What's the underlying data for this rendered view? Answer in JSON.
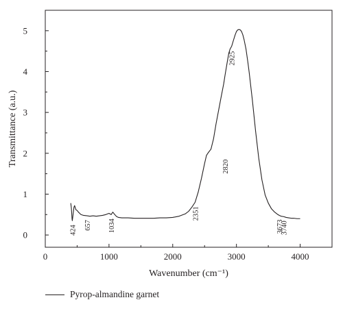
{
  "chart_data": {
    "type": "line",
    "xlabel": "Wavenumber (cm⁻¹)",
    "ylabel": "Transmittance (a.u.)",
    "xlim": [
      0,
      4500
    ],
    "ylim": [
      -0.3,
      5.5
    ],
    "xticks": [
      0,
      1000,
      2000,
      3000,
      4000
    ],
    "yticks": [
      0,
      1,
      2,
      3,
      4,
      5
    ],
    "grid": false,
    "legend_position": "bottom-left",
    "series": [
      {
        "name": "Pyrop-almandine garnet",
        "color": "#231f20",
        "x": [
          400,
          410,
          420,
          424,
          430,
          440,
          450,
          460,
          470,
          480,
          500,
          520,
          540,
          560,
          600,
          657,
          700,
          750,
          800,
          850,
          900,
          950,
          1000,
          1034,
          1060,
          1090,
          1120,
          1150,
          1200,
          1300,
          1400,
          1500,
          1600,
          1700,
          1800,
          1900,
          2000,
          2100,
          2200,
          2250,
          2300,
          2351,
          2400,
          2450,
          2500,
          2530,
          2560,
          2600,
          2640,
          2680,
          2720,
          2760,
          2800,
          2820,
          2850,
          2880,
          2900,
          2925,
          2950,
          2980,
          3000,
          3020,
          3040,
          3060,
          3080,
          3100,
          3120,
          3150,
          3180,
          3200,
          3250,
          3300,
          3350,
          3400,
          3450,
          3500,
          3550,
          3600,
          3650,
          3673,
          3700,
          3740,
          3780,
          3820,
          3860,
          3900,
          3950,
          4000
        ],
        "y": [
          0.78,
          0.65,
          0.4,
          0.35,
          0.42,
          0.55,
          0.68,
          0.72,
          0.67,
          0.62,
          0.6,
          0.56,
          0.53,
          0.5,
          0.48,
          0.47,
          0.46,
          0.47,
          0.46,
          0.47,
          0.48,
          0.5,
          0.53,
          0.5,
          0.56,
          0.5,
          0.45,
          0.43,
          0.42,
          0.42,
          0.41,
          0.41,
          0.41,
          0.41,
          0.42,
          0.42,
          0.43,
          0.46,
          0.52,
          0.58,
          0.68,
          0.8,
          1.05,
          1.38,
          1.75,
          1.95,
          2.02,
          2.1,
          2.35,
          2.72,
          3.05,
          3.38,
          3.7,
          3.9,
          4.18,
          4.45,
          4.55,
          4.62,
          4.75,
          4.9,
          4.98,
          5.02,
          5.03,
          5.02,
          4.98,
          4.9,
          4.78,
          4.55,
          4.22,
          3.98,
          3.3,
          2.55,
          1.88,
          1.35,
          0.98,
          0.78,
          0.64,
          0.56,
          0.5,
          0.48,
          0.46,
          0.45,
          0.43,
          0.42,
          0.41,
          0.41,
          0.4,
          0.4
        ]
      }
    ],
    "annotations": [
      {
        "text": "424",
        "x": 424,
        "y": 0.35
      },
      {
        "text": "657",
        "x": 657,
        "y": 0.47
      },
      {
        "text": "1034",
        "x": 1034,
        "y": 0.5
      },
      {
        "text": "2351",
        "x": 2351,
        "y": 0.8
      },
      {
        "text": "2820",
        "x": 2820,
        "y": 1.95
      },
      {
        "text": "2925",
        "x": 2925,
        "y": 4.6
      },
      {
        "text": "3673",
        "x": 3673,
        "y": 0.48
      },
      {
        "text": "3740",
        "x": 3740,
        "y": 0.45
      }
    ]
  }
}
